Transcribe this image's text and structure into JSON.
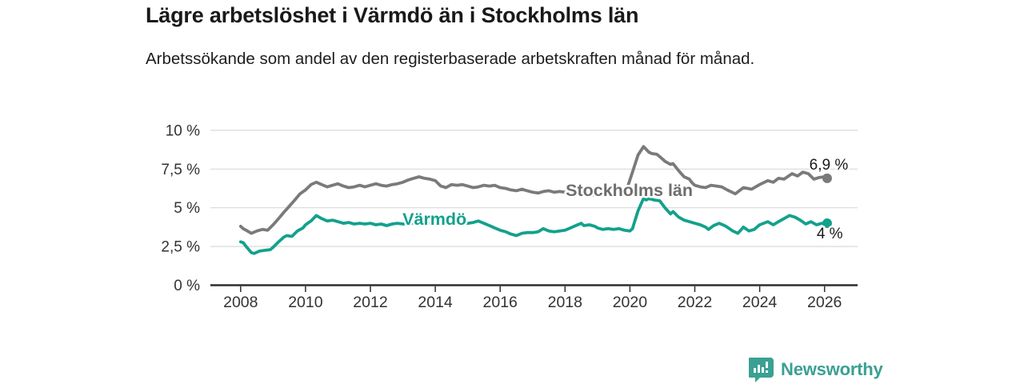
{
  "header": {
    "title": "Lägre arbetslöshet i Värmdö än i Stockholms län",
    "subtitle": "Arbetssökande som andel av den registerbaserade arbetskraften månad för månad."
  },
  "footer": {
    "brand": "Newsworthy",
    "logo_icon": "bar-chart-speech-bubble"
  },
  "colors": {
    "varmdo": "#13a18c",
    "stockholm": "#7a7a7a",
    "stockholm_label": "#6e6e6e",
    "grid": "#d9d9d9",
    "axis": "#2e2e2e",
    "tick_text": "#333333",
    "annotation": "#1a1a1a",
    "brand": "#3aa093"
  },
  "chart_data": {
    "type": "line",
    "title": "Lägre arbetslöshet i Värmdö än i Stockholms län",
    "xlabel": "",
    "ylabel": "Arbetssökande som andel av den registerbaserade arbetskraften",
    "grid": "horizontal",
    "legend_position": "inline-labels",
    "x_axis": {
      "unit": "year",
      "range": [
        2007.1,
        2027.0
      ],
      "ticks": [
        {
          "value": 2008,
          "label": "2008"
        },
        {
          "value": 2010,
          "label": "2010"
        },
        {
          "value": 2012,
          "label": "2012"
        },
        {
          "value": 2014,
          "label": "2014"
        },
        {
          "value": 2016,
          "label": "2016"
        },
        {
          "value": 2018,
          "label": "2018"
        },
        {
          "value": 2020,
          "label": "2020"
        },
        {
          "value": 2022,
          "label": "2022"
        },
        {
          "value": 2024,
          "label": "2024"
        },
        {
          "value": 2026,
          "label": "2026"
        }
      ]
    },
    "y_axis": {
      "unit": "%",
      "range": [
        0,
        10
      ],
      "ticks": [
        {
          "value": 0,
          "label": "0 %"
        },
        {
          "value": 2.5,
          "label": "2,5 %"
        },
        {
          "value": 5,
          "label": "5 %"
        },
        {
          "value": 7.5,
          "label": "7,5 %"
        },
        {
          "value": 10,
          "label": "10 %"
        }
      ]
    },
    "series": [
      {
        "id": "stockholm",
        "name": "Stockholms län",
        "color": "#7a7a7a",
        "end_value_label": "6,9 %",
        "points": [
          [
            2008.0,
            3.8
          ],
          [
            2008.08,
            3.65
          ],
          [
            2008.17,
            3.55
          ],
          [
            2008.33,
            3.35
          ],
          [
            2008.5,
            3.5
          ],
          [
            2008.67,
            3.6
          ],
          [
            2008.83,
            3.55
          ],
          [
            2009.0,
            3.9
          ],
          [
            2009.17,
            4.3
          ],
          [
            2009.33,
            4.7
          ],
          [
            2009.5,
            5.1
          ],
          [
            2009.67,
            5.5
          ],
          [
            2009.83,
            5.9
          ],
          [
            2010.0,
            6.15
          ],
          [
            2010.17,
            6.5
          ],
          [
            2010.33,
            6.65
          ],
          [
            2010.5,
            6.5
          ],
          [
            2010.67,
            6.35
          ],
          [
            2010.83,
            6.45
          ],
          [
            2011.0,
            6.55
          ],
          [
            2011.17,
            6.4
          ],
          [
            2011.33,
            6.3
          ],
          [
            2011.5,
            6.35
          ],
          [
            2011.67,
            6.45
          ],
          [
            2011.83,
            6.35
          ],
          [
            2012.0,
            6.45
          ],
          [
            2012.17,
            6.55
          ],
          [
            2012.33,
            6.45
          ],
          [
            2012.5,
            6.4
          ],
          [
            2012.67,
            6.5
          ],
          [
            2012.83,
            6.55
          ],
          [
            2013.0,
            6.65
          ],
          [
            2013.17,
            6.8
          ],
          [
            2013.33,
            6.9
          ],
          [
            2013.5,
            7.0
          ],
          [
            2013.67,
            6.9
          ],
          [
            2013.83,
            6.85
          ],
          [
            2014.0,
            6.75
          ],
          [
            2014.17,
            6.4
          ],
          [
            2014.33,
            6.3
          ],
          [
            2014.5,
            6.5
          ],
          [
            2014.67,
            6.45
          ],
          [
            2014.83,
            6.5
          ],
          [
            2015.0,
            6.4
          ],
          [
            2015.17,
            6.3
          ],
          [
            2015.33,
            6.35
          ],
          [
            2015.5,
            6.45
          ],
          [
            2015.67,
            6.4
          ],
          [
            2015.83,
            6.45
          ],
          [
            2016.0,
            6.3
          ],
          [
            2016.17,
            6.25
          ],
          [
            2016.33,
            6.15
          ],
          [
            2016.5,
            6.1
          ],
          [
            2016.67,
            6.2
          ],
          [
            2016.83,
            6.1
          ],
          [
            2017.0,
            6.0
          ],
          [
            2017.17,
            5.95
          ],
          [
            2017.33,
            6.05
          ],
          [
            2017.5,
            6.1
          ],
          [
            2017.67,
            6.0
          ],
          [
            2017.83,
            6.05
          ],
          [
            2018.0,
            6.0
          ],
          [
            2018.25,
            5.95
          ],
          [
            2018.5,
            5.9
          ],
          [
            2018.75,
            5.85
          ],
          [
            2019.0,
            5.8
          ],
          [
            2019.25,
            5.85
          ],
          [
            2019.5,
            5.95
          ],
          [
            2019.75,
            6.1
          ],
          [
            2019.92,
            6.3
          ],
          [
            2020.08,
            7.3
          ],
          [
            2020.25,
            8.4
          ],
          [
            2020.42,
            8.95
          ],
          [
            2020.58,
            8.6
          ],
          [
            2020.67,
            8.5
          ],
          [
            2020.83,
            8.45
          ],
          [
            2020.92,
            8.3
          ],
          [
            2021.08,
            8.0
          ],
          [
            2021.25,
            7.8
          ],
          [
            2021.33,
            7.85
          ],
          [
            2021.5,
            7.4
          ],
          [
            2021.67,
            7.0
          ],
          [
            2021.83,
            6.85
          ],
          [
            2021.92,
            6.6
          ],
          [
            2022.0,
            6.45
          ],
          [
            2022.17,
            6.35
          ],
          [
            2022.33,
            6.3
          ],
          [
            2022.5,
            6.45
          ],
          [
            2022.67,
            6.4
          ],
          [
            2022.83,
            6.35
          ],
          [
            2023.0,
            6.15
          ],
          [
            2023.25,
            5.9
          ],
          [
            2023.5,
            6.3
          ],
          [
            2023.75,
            6.2
          ],
          [
            2024.0,
            6.5
          ],
          [
            2024.25,
            6.75
          ],
          [
            2024.42,
            6.65
          ],
          [
            2024.58,
            6.9
          ],
          [
            2024.75,
            6.85
          ],
          [
            2025.0,
            7.2
          ],
          [
            2025.17,
            7.05
          ],
          [
            2025.33,
            7.3
          ],
          [
            2025.5,
            7.2
          ],
          [
            2025.67,
            6.85
          ],
          [
            2025.83,
            6.95
          ],
          [
            2026.0,
            7.0
          ],
          [
            2026.08,
            6.9
          ]
        ]
      },
      {
        "id": "varmdo",
        "name": "Värmdö",
        "color": "#13a18c",
        "end_value_label": "4 %",
        "points": [
          [
            2008.0,
            2.8
          ],
          [
            2008.08,
            2.75
          ],
          [
            2008.17,
            2.5
          ],
          [
            2008.33,
            2.1
          ],
          [
            2008.42,
            2.05
          ],
          [
            2008.58,
            2.2
          ],
          [
            2008.75,
            2.25
          ],
          [
            2008.92,
            2.3
          ],
          [
            2009.0,
            2.45
          ],
          [
            2009.17,
            2.8
          ],
          [
            2009.33,
            3.1
          ],
          [
            2009.42,
            3.2
          ],
          [
            2009.58,
            3.15
          ],
          [
            2009.75,
            3.5
          ],
          [
            2009.92,
            3.7
          ],
          [
            2010.0,
            3.9
          ],
          [
            2010.17,
            4.15
          ],
          [
            2010.33,
            4.5
          ],
          [
            2010.5,
            4.3
          ],
          [
            2010.67,
            4.15
          ],
          [
            2010.83,
            4.2
          ],
          [
            2011.0,
            4.1
          ],
          [
            2011.17,
            4.0
          ],
          [
            2011.33,
            4.05
          ],
          [
            2011.5,
            3.95
          ],
          [
            2011.67,
            4.0
          ],
          [
            2011.83,
            3.95
          ],
          [
            2012.0,
            4.0
          ],
          [
            2012.17,
            3.9
          ],
          [
            2012.33,
            3.95
          ],
          [
            2012.5,
            3.85
          ],
          [
            2012.67,
            3.95
          ],
          [
            2012.83,
            4.0
          ],
          [
            2013.0,
            3.95
          ],
          [
            2013.25,
            4.0
          ],
          [
            2013.5,
            4.05
          ],
          [
            2013.75,
            4.0
          ],
          [
            2014.0,
            4.05
          ],
          [
            2014.25,
            4.0
          ],
          [
            2014.5,
            3.95
          ],
          [
            2014.75,
            4.0
          ],
          [
            2015.0,
            4.0
          ],
          [
            2015.17,
            4.05
          ],
          [
            2015.33,
            4.15
          ],
          [
            2015.5,
            4.0
          ],
          [
            2015.67,
            3.85
          ],
          [
            2015.83,
            3.7
          ],
          [
            2016.0,
            3.55
          ],
          [
            2016.17,
            3.45
          ],
          [
            2016.33,
            3.3
          ],
          [
            2016.5,
            3.2
          ],
          [
            2016.67,
            3.35
          ],
          [
            2016.83,
            3.4
          ],
          [
            2017.0,
            3.4
          ],
          [
            2017.17,
            3.45
          ],
          [
            2017.33,
            3.65
          ],
          [
            2017.5,
            3.5
          ],
          [
            2017.67,
            3.45
          ],
          [
            2017.83,
            3.5
          ],
          [
            2018.0,
            3.55
          ],
          [
            2018.17,
            3.7
          ],
          [
            2018.33,
            3.85
          ],
          [
            2018.5,
            4.0
          ],
          [
            2018.58,
            3.85
          ],
          [
            2018.75,
            3.9
          ],
          [
            2018.92,
            3.8
          ],
          [
            2019.0,
            3.7
          ],
          [
            2019.17,
            3.6
          ],
          [
            2019.33,
            3.65
          ],
          [
            2019.5,
            3.6
          ],
          [
            2019.67,
            3.65
          ],
          [
            2019.83,
            3.55
          ],
          [
            2020.0,
            3.5
          ],
          [
            2020.08,
            3.65
          ],
          [
            2020.25,
            4.8
          ],
          [
            2020.42,
            5.6
          ],
          [
            2020.5,
            5.5
          ],
          [
            2020.58,
            5.6
          ],
          [
            2020.75,
            5.5
          ],
          [
            2020.92,
            5.45
          ],
          [
            2021.08,
            5.0
          ],
          [
            2021.25,
            4.6
          ],
          [
            2021.33,
            4.75
          ],
          [
            2021.5,
            4.4
          ],
          [
            2021.67,
            4.2
          ],
          [
            2021.83,
            4.1
          ],
          [
            2022.0,
            4.0
          ],
          [
            2022.17,
            3.9
          ],
          [
            2022.33,
            3.75
          ],
          [
            2022.42,
            3.6
          ],
          [
            2022.58,
            3.85
          ],
          [
            2022.75,
            4.0
          ],
          [
            2022.92,
            3.85
          ],
          [
            2023.0,
            3.75
          ],
          [
            2023.17,
            3.5
          ],
          [
            2023.33,
            3.35
          ],
          [
            2023.5,
            3.75
          ],
          [
            2023.67,
            3.5
          ],
          [
            2023.83,
            3.6
          ],
          [
            2024.0,
            3.9
          ],
          [
            2024.25,
            4.1
          ],
          [
            2024.42,
            3.9
          ],
          [
            2024.58,
            4.1
          ],
          [
            2024.75,
            4.3
          ],
          [
            2024.92,
            4.5
          ],
          [
            2025.08,
            4.4
          ],
          [
            2025.25,
            4.2
          ],
          [
            2025.42,
            3.95
          ],
          [
            2025.58,
            4.1
          ],
          [
            2025.75,
            3.9
          ],
          [
            2025.92,
            4.0
          ],
          [
            2026.08,
            4.0
          ]
        ]
      }
    ],
    "series_labels": [
      {
        "text": "Stockholms län",
        "series": "stockholm",
        "year": 2018.02,
        "value": 5.76,
        "anchor": "start",
        "color": "#6e6e6e"
      },
      {
        "text": "Värmdö",
        "series": "varmdo",
        "year": 2012.99,
        "value": 3.9,
        "anchor": "start",
        "color": "#13a18c"
      }
    ],
    "annotations": [
      {
        "text": "6,9 %",
        "series": "stockholm",
        "year": 2026.13,
        "value": 7.47,
        "anchor": "middle"
      },
      {
        "text": "4 %",
        "series": "varmdo",
        "year": 2026.16,
        "value": 3.02,
        "anchor": "middle"
      }
    ]
  }
}
